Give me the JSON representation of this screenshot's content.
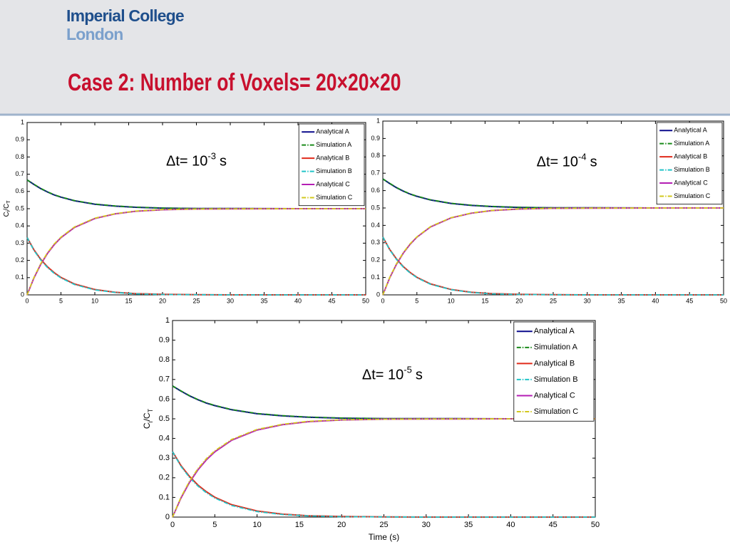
{
  "header": {
    "logo_line1": "Imperial College",
    "logo_line2": "London",
    "title": "Case 2: Number of Voxels= 20×20×20"
  },
  "chart_data": [
    {
      "type": "line",
      "annotation": {
        "text": "Δt= 10",
        "exponent": "-3",
        "unit": "s"
      },
      "ylabel": {
        "base": "C",
        "sub": "i",
        "mid": "/C",
        "sub2": "T"
      },
      "x": [
        0,
        1,
        2,
        3,
        4,
        5,
        7,
        10,
        13,
        16,
        20,
        25,
        30,
        40,
        50
      ],
      "xlim": [
        0,
        50
      ],
      "xticks": [
        0,
        5,
        10,
        15,
        20,
        25,
        30,
        35,
        40,
        45,
        50
      ],
      "ylim": [
        0,
        1
      ],
      "yticks": [
        0,
        0.1,
        0.2,
        0.3,
        0.4,
        0.5,
        0.6,
        0.7,
        0.8,
        0.9,
        1
      ],
      "grid": false,
      "legend": "upper right",
      "series": [
        {
          "name": "Analytical A",
          "color": "#0a0a8c",
          "style": "solid",
          "values": [
            0.667,
            0.641,
            0.617,
            0.597,
            0.58,
            0.567,
            0.546,
            0.526,
            0.515,
            0.508,
            0.503,
            0.501,
            0.501,
            0.5,
            0.5
          ]
        },
        {
          "name": "Simulation A",
          "color": "#1a8a1a",
          "style": "dashdot",
          "values": [
            0.667,
            0.642,
            0.618,
            0.598,
            0.581,
            0.568,
            0.547,
            0.527,
            0.516,
            0.509,
            0.504,
            0.501,
            0.501,
            0.5,
            0.5
          ]
        },
        {
          "name": "Analytical B",
          "color": "#e02a1a",
          "style": "solid",
          "values": [
            0.333,
            0.262,
            0.207,
            0.163,
            0.129,
            0.101,
            0.063,
            0.031,
            0.015,
            0.007,
            0.003,
            0.001,
            0,
            0,
            0
          ]
        },
        {
          "name": "Simulation B",
          "color": "#22c4c8",
          "style": "dashdot",
          "values": [
            0.333,
            0.259,
            0.203,
            0.159,
            0.125,
            0.098,
            0.06,
            0.029,
            0.014,
            0.006,
            0.002,
            0.001,
            0,
            0,
            0
          ]
        },
        {
          "name": "Analytical C",
          "color": "#b41eb4",
          "style": "solid",
          "values": [
            0,
            0.097,
            0.176,
            0.24,
            0.291,
            0.332,
            0.391,
            0.443,
            0.47,
            0.485,
            0.494,
            0.498,
            0.499,
            0.5,
            0.5
          ]
        },
        {
          "name": "Simulation C",
          "color": "#d2c81e",
          "style": "dashdot",
          "values": [
            0,
            0.1,
            0.18,
            0.244,
            0.295,
            0.335,
            0.394,
            0.445,
            0.471,
            0.486,
            0.495,
            0.498,
            0.499,
            0.5,
            0.5
          ]
        }
      ]
    },
    {
      "type": "line",
      "annotation": {
        "text": "Δt= 10",
        "exponent": "-4",
        "unit": "s"
      },
      "x": [
        0,
        1,
        2,
        3,
        4,
        5,
        7,
        10,
        13,
        16,
        20,
        25,
        30,
        40,
        50
      ],
      "xlim": [
        0,
        50
      ],
      "xticks": [
        0,
        5,
        10,
        15,
        20,
        25,
        30,
        35,
        40,
        45,
        50
      ],
      "ylim": [
        0,
        1
      ],
      "yticks": [
        0,
        0.1,
        0.2,
        0.3,
        0.4,
        0.5,
        0.6,
        0.7,
        0.8,
        0.9,
        1
      ],
      "grid": false,
      "legend": "upper right",
      "series": [
        {
          "name": "Analytical A",
          "color": "#0a0a8c",
          "style": "solid",
          "values": [
            0.667,
            0.641,
            0.617,
            0.597,
            0.58,
            0.567,
            0.546,
            0.526,
            0.515,
            0.508,
            0.503,
            0.501,
            0.501,
            0.5,
            0.5
          ]
        },
        {
          "name": "Simulation A",
          "color": "#1a8a1a",
          "style": "dashdot",
          "values": [
            0.667,
            0.642,
            0.618,
            0.598,
            0.581,
            0.568,
            0.547,
            0.527,
            0.516,
            0.509,
            0.504,
            0.501,
            0.501,
            0.5,
            0.5
          ]
        },
        {
          "name": "Analytical B",
          "color": "#e02a1a",
          "style": "solid",
          "values": [
            0.333,
            0.262,
            0.207,
            0.163,
            0.129,
            0.101,
            0.063,
            0.031,
            0.015,
            0.007,
            0.003,
            0.001,
            0,
            0,
            0
          ]
        },
        {
          "name": "Simulation B",
          "color": "#22c4c8",
          "style": "dashdot",
          "values": [
            0.333,
            0.26,
            0.204,
            0.16,
            0.126,
            0.099,
            0.061,
            0.03,
            0.014,
            0.006,
            0.002,
            0.001,
            0,
            0,
            0
          ]
        },
        {
          "name": "Analytical C",
          "color": "#b41eb4",
          "style": "solid",
          "values": [
            0,
            0.097,
            0.176,
            0.24,
            0.291,
            0.332,
            0.391,
            0.443,
            0.47,
            0.485,
            0.494,
            0.498,
            0.499,
            0.5,
            0.5
          ]
        },
        {
          "name": "Simulation C",
          "color": "#d2c81e",
          "style": "dashdot",
          "values": [
            0,
            0.099,
            0.179,
            0.243,
            0.294,
            0.334,
            0.393,
            0.444,
            0.471,
            0.486,
            0.495,
            0.498,
            0.499,
            0.5,
            0.5
          ]
        }
      ]
    },
    {
      "type": "line",
      "annotation": {
        "text": "Δt= 10",
        "exponent": "-5",
        "unit": "s"
      },
      "ylabel": {
        "base": "C",
        "sub": "i",
        "mid": "/C",
        "sub2": "T"
      },
      "xlabel": "Time (s)",
      "x": [
        0,
        1,
        2,
        3,
        4,
        5,
        7,
        10,
        13,
        16,
        20,
        25,
        30,
        40,
        50
      ],
      "xlim": [
        0,
        50
      ],
      "xticks": [
        0,
        5,
        10,
        15,
        20,
        25,
        30,
        35,
        40,
        45,
        50
      ],
      "ylim": [
        0,
        1
      ],
      "yticks": [
        0,
        0.1,
        0.2,
        0.3,
        0.4,
        0.5,
        0.6,
        0.7,
        0.8,
        0.9,
        1
      ],
      "grid": false,
      "legend": "upper right",
      "series": [
        {
          "name": "Analytical A",
          "color": "#0a0a8c",
          "style": "solid",
          "values": [
            0.667,
            0.641,
            0.617,
            0.597,
            0.58,
            0.567,
            0.546,
            0.526,
            0.515,
            0.508,
            0.503,
            0.501,
            0.501,
            0.5,
            0.5
          ]
        },
        {
          "name": "Simulation A",
          "color": "#1a8a1a",
          "style": "dashdot",
          "values": [
            0.667,
            0.642,
            0.618,
            0.598,
            0.581,
            0.568,
            0.547,
            0.527,
            0.516,
            0.509,
            0.504,
            0.501,
            0.501,
            0.5,
            0.5
          ]
        },
        {
          "name": "Analytical B",
          "color": "#e02a1a",
          "style": "solid",
          "values": [
            0.333,
            0.262,
            0.207,
            0.163,
            0.129,
            0.101,
            0.063,
            0.031,
            0.015,
            0.007,
            0.003,
            0.001,
            0,
            0,
            0
          ]
        },
        {
          "name": "Simulation B",
          "color": "#22c4c8",
          "style": "dashdot",
          "values": [
            0.333,
            0.258,
            0.202,
            0.158,
            0.124,
            0.097,
            0.059,
            0.028,
            0.013,
            0.006,
            0.002,
            0.001,
            0,
            0,
            0
          ]
        },
        {
          "name": "Analytical C",
          "color": "#b41eb4",
          "style": "solid",
          "values": [
            0,
            0.097,
            0.176,
            0.24,
            0.291,
            0.332,
            0.391,
            0.443,
            0.47,
            0.485,
            0.494,
            0.498,
            0.499,
            0.5,
            0.5
          ]
        },
        {
          "name": "Simulation C",
          "color": "#d2c81e",
          "style": "dashdot",
          "values": [
            0,
            0.101,
            0.182,
            0.246,
            0.297,
            0.337,
            0.395,
            0.446,
            0.472,
            0.487,
            0.495,
            0.498,
            0.499,
            0.5,
            0.5
          ]
        }
      ]
    }
  ]
}
